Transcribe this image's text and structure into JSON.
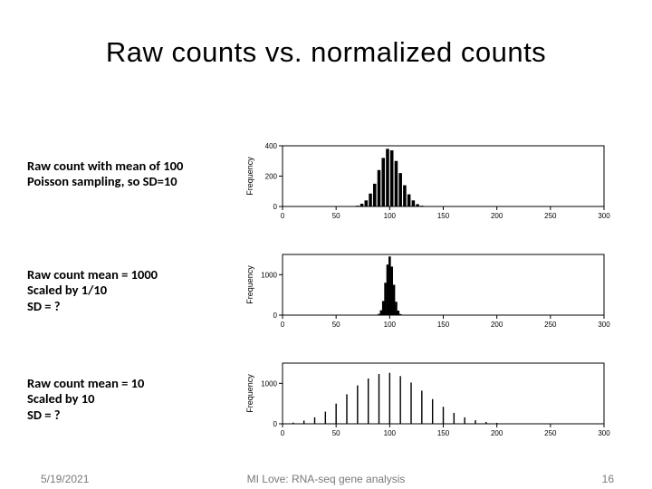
{
  "title": "Raw counts vs. normalized counts",
  "footer": {
    "date": "5/19/2021",
    "center": "MI Love: RNA-seq gene analysis",
    "page": "16"
  },
  "rows": [
    {
      "desc": [
        "Raw count with mean of 100",
        "Poisson sampling, so SD=10"
      ],
      "chart": {
        "type": "histogram",
        "ylabel": "Frequency",
        "label_fontsize": 8,
        "xlim": [
          0,
          300
        ],
        "xticks": [
          0,
          50,
          100,
          150,
          200,
          250,
          300
        ],
        "ylim": [
          0,
          400
        ],
        "yticks": [
          0,
          200,
          400
        ],
        "bar_color": "#000000",
        "axis_color": "#000000",
        "background_color": "#ffffff",
        "bins": [
          {
            "center": 70,
            "width": 3,
            "freq": 5
          },
          {
            "center": 74,
            "width": 3,
            "freq": 18
          },
          {
            "center": 78,
            "width": 3,
            "freq": 40
          },
          {
            "center": 82,
            "width": 3,
            "freq": 85
          },
          {
            "center": 86,
            "width": 3,
            "freq": 150
          },
          {
            "center": 90,
            "width": 3,
            "freq": 240
          },
          {
            "center": 94,
            "width": 3,
            "freq": 320
          },
          {
            "center": 98,
            "width": 3,
            "freq": 380
          },
          {
            "center": 102,
            "width": 3,
            "freq": 370
          },
          {
            "center": 106,
            "width": 3,
            "freq": 300
          },
          {
            "center": 110,
            "width": 3,
            "freq": 220
          },
          {
            "center": 114,
            "width": 3,
            "freq": 140
          },
          {
            "center": 118,
            "width": 3,
            "freq": 80
          },
          {
            "center": 122,
            "width": 3,
            "freq": 40
          },
          {
            "center": 126,
            "width": 3,
            "freq": 15
          },
          {
            "center": 130,
            "width": 3,
            "freq": 5
          }
        ]
      }
    },
    {
      "desc": [
        "Raw count mean = 1000",
        "Scaled by 1/10",
        "SD = ?"
      ],
      "chart": {
        "type": "histogram",
        "ylabel": "Frequency",
        "label_fontsize": 8,
        "xlim": [
          0,
          300
        ],
        "xticks": [
          0,
          50,
          100,
          150,
          200,
          250,
          300
        ],
        "ylim": [
          0,
          1500
        ],
        "yticks": [
          0,
          1000
        ],
        "bar_color": "#000000",
        "axis_color": "#000000",
        "background_color": "#ffffff",
        "bins": [
          {
            "center": 90,
            "width": 2.2,
            "freq": 30
          },
          {
            "center": 92,
            "width": 2.2,
            "freq": 120
          },
          {
            "center": 94,
            "width": 2.2,
            "freq": 350
          },
          {
            "center": 96,
            "width": 2.2,
            "freq": 800
          },
          {
            "center": 98,
            "width": 2.2,
            "freq": 1250
          },
          {
            "center": 100,
            "width": 2.2,
            "freq": 1450
          },
          {
            "center": 102,
            "width": 2.2,
            "freq": 1200
          },
          {
            "center": 104,
            "width": 2.2,
            "freq": 750
          },
          {
            "center": 106,
            "width": 2.2,
            "freq": 330
          },
          {
            "center": 108,
            "width": 2.2,
            "freq": 110
          },
          {
            "center": 110,
            "width": 2.2,
            "freq": 25
          }
        ]
      }
    },
    {
      "desc": [
        "Raw count mean = 10",
        "Scaled by 10",
        "SD = ?"
      ],
      "chart": {
        "type": "histogram",
        "ylabel": "Frequency",
        "label_fontsize": 8,
        "xlim": [
          0,
          300
        ],
        "xticks": [
          0,
          50,
          100,
          150,
          200,
          250,
          300
        ],
        "ylim": [
          0,
          1500
        ],
        "yticks": [
          0,
          1000
        ],
        "bar_color": "#000000",
        "axis_color": "#000000",
        "background_color": "#ffffff",
        "bins": [
          {
            "center": 10,
            "width": 1.2,
            "freq": 30
          },
          {
            "center": 20,
            "width": 1.2,
            "freq": 80
          },
          {
            "center": 30,
            "width": 1.2,
            "freq": 160
          },
          {
            "center": 40,
            "width": 1.2,
            "freq": 300
          },
          {
            "center": 50,
            "width": 1.2,
            "freq": 500
          },
          {
            "center": 60,
            "width": 1.2,
            "freq": 730
          },
          {
            "center": 70,
            "width": 1.2,
            "freq": 950
          },
          {
            "center": 80,
            "width": 1.2,
            "freq": 1120
          },
          {
            "center": 90,
            "width": 1.2,
            "freq": 1230
          },
          {
            "center": 100,
            "width": 1.2,
            "freq": 1260
          },
          {
            "center": 110,
            "width": 1.2,
            "freq": 1180
          },
          {
            "center": 120,
            "width": 1.2,
            "freq": 1020
          },
          {
            "center": 130,
            "width": 1.2,
            "freq": 820
          },
          {
            "center": 140,
            "width": 1.2,
            "freq": 610
          },
          {
            "center": 150,
            "width": 1.2,
            "freq": 420
          },
          {
            "center": 160,
            "width": 1.2,
            "freq": 270
          },
          {
            "center": 170,
            "width": 1.2,
            "freq": 160
          },
          {
            "center": 180,
            "width": 1.2,
            "freq": 90
          },
          {
            "center": 190,
            "width": 1.2,
            "freq": 45
          },
          {
            "center": 200,
            "width": 1.2,
            "freq": 22
          },
          {
            "center": 210,
            "width": 1.2,
            "freq": 10
          }
        ]
      }
    }
  ]
}
